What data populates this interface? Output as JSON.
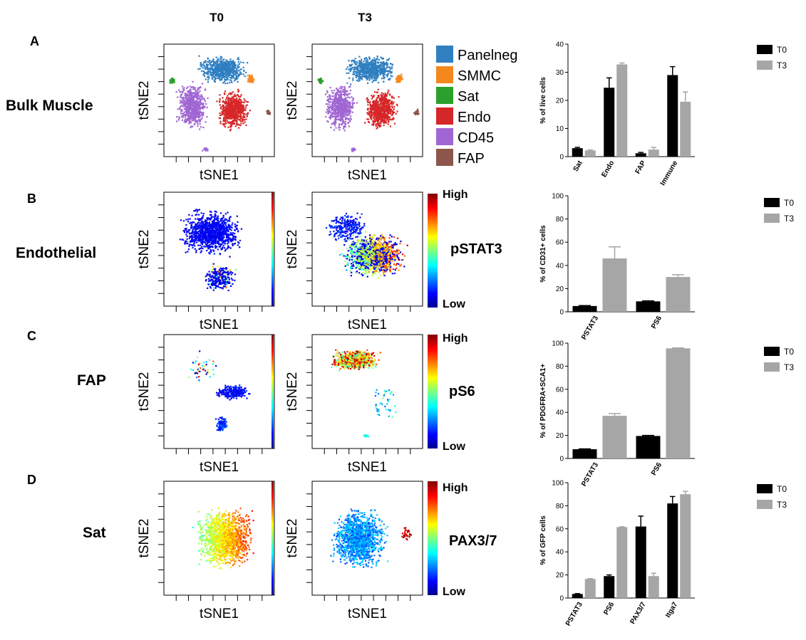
{
  "columns": [
    "T0",
    "T3"
  ],
  "axis": {
    "x": "tSNE1",
    "y": "tSNE2"
  },
  "rows": [
    {
      "letter": "A",
      "label": "Bulk Muscle",
      "marker": ""
    },
    {
      "letter": "B",
      "label": "Endothelial",
      "marker": "pSTAT3"
    },
    {
      "letter": "C",
      "label": "FAP",
      "marker": "pS6"
    },
    {
      "letter": "D",
      "label": "Sat",
      "marker": "PAX3/7"
    }
  ],
  "colorbar": {
    "high": "High",
    "low": "Low"
  },
  "population_legend": [
    {
      "label": "Panelneg",
      "color": "#2f7fc1"
    },
    {
      "label": "SMMC",
      "color": "#f5871f"
    },
    {
      "label": "Sat",
      "color": "#2ca02c"
    },
    {
      "label": "Endo",
      "color": "#d62728"
    },
    {
      "label": "CD45",
      "color": "#a066d3"
    },
    {
      "label": "FAP",
      "color": "#8c564b"
    }
  ],
  "series_colors": {
    "T0": "#000000",
    "T3": "#a6a6a6"
  },
  "chart_data": [
    {
      "type": "bar",
      "panel": "A",
      "ylabel": "% of live cells",
      "ylim": [
        0,
        40
      ],
      "yticks": [
        0,
        10,
        20,
        30,
        40
      ],
      "categories": [
        "Sat",
        "Endo",
        "FAP",
        "Immune"
      ],
      "series": [
        {
          "name": "T0",
          "values": [
            3,
            24.5,
            1.2,
            29
          ],
          "errors": [
            0.3,
            3.5,
            0.3,
            3
          ]
        },
        {
          "name": "T3",
          "values": [
            2.2,
            32.8,
            2.5,
            19.5
          ],
          "errors": [
            0.2,
            0.5,
            0.8,
            3.5
          ]
        }
      ]
    },
    {
      "type": "bar",
      "panel": "B",
      "ylabel": "% of CD31+ cells",
      "ylim": [
        0,
        100
      ],
      "yticks": [
        0,
        20,
        40,
        60,
        80,
        100
      ],
      "categories": [
        "PSTAT3",
        "PS6"
      ],
      "series": [
        {
          "name": "T0",
          "values": [
            5,
            9
          ],
          "errors": [
            0.4,
            0.4
          ]
        },
        {
          "name": "T3",
          "values": [
            46,
            30
          ],
          "errors": [
            10,
            2
          ]
        }
      ]
    },
    {
      "type": "bar",
      "panel": "C",
      "ylabel": "% of PDGFRA+SCA1+",
      "ylim": [
        0,
        100
      ],
      "yticks": [
        0,
        20,
        40,
        60,
        80,
        100
      ],
      "categories": [
        "PSTAT3",
        "PS6"
      ],
      "series": [
        {
          "name": "T0",
          "values": [
            8,
            19.5
          ],
          "errors": [
            0.3,
            0.5
          ]
        },
        {
          "name": "T3",
          "values": [
            37,
            95.5
          ],
          "errors": [
            2,
            0.3
          ]
        }
      ]
    },
    {
      "type": "bar",
      "panel": "D",
      "ylabel": "% of GFP cells",
      "ylim": [
        0,
        100
      ],
      "yticks": [
        0,
        20,
        40,
        60,
        80,
        100
      ],
      "categories": [
        "PSTAT3",
        "PS6",
        "PAX3/7",
        "Itga7"
      ],
      "series": [
        {
          "name": "T0",
          "values": [
            3.5,
            19,
            62,
            82
          ],
          "errors": [
            0.3,
            1,
            9,
            6
          ]
        },
        {
          "name": "T3",
          "values": [
            16.5,
            61.5,
            19,
            90
          ],
          "errors": [
            0.3,
            0.3,
            2.5,
            2.5
          ]
        }
      ]
    }
  ]
}
